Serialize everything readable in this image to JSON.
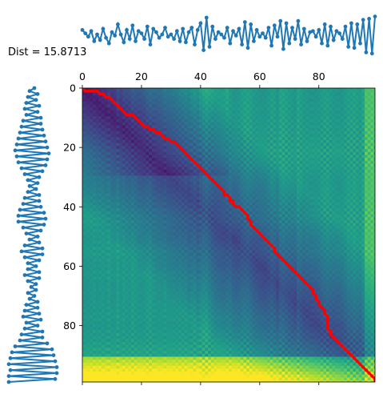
{
  "dist_label": "Dist = 15.8713",
  "chart_data": [
    {
      "type": "heatmap",
      "title": "",
      "xlabel": "",
      "ylabel": "",
      "xlim": [
        0,
        99
      ],
      "ylim": [
        99,
        0
      ],
      "x_ticks": [
        0,
        20,
        40,
        60,
        80
      ],
      "y_ticks": [
        0,
        20,
        40,
        60,
        80
      ],
      "x_tick_labels": [
        "0",
        "20",
        "40",
        "60",
        "80"
      ],
      "y_tick_labels": [
        "0",
        "20",
        "40",
        "60",
        "80"
      ],
      "colormap": "viridis",
      "path_color": "#ff0000",
      "path": [
        [
          0,
          0
        ],
        [
          1,
          1
        ],
        [
          2,
          1
        ],
        [
          3,
          1
        ],
        [
          4,
          1
        ],
        [
          5,
          1
        ],
        [
          6,
          2
        ],
        [
          7,
          2
        ],
        [
          8,
          3
        ],
        [
          9,
          3
        ],
        [
          10,
          4
        ],
        [
          11,
          5
        ],
        [
          12,
          6
        ],
        [
          13,
          7
        ],
        [
          14,
          8
        ],
        [
          15,
          9
        ],
        [
          16,
          9
        ],
        [
          17,
          9
        ],
        [
          18,
          10
        ],
        [
          19,
          11
        ],
        [
          20,
          12
        ],
        [
          21,
          13
        ],
        [
          22,
          13
        ],
        [
          23,
          14
        ],
        [
          24,
          14
        ],
        [
          25,
          15
        ],
        [
          26,
          15
        ],
        [
          27,
          16
        ],
        [
          28,
          17
        ],
        [
          29,
          17
        ],
        [
          30,
          18
        ],
        [
          31,
          18
        ],
        [
          32,
          19
        ],
        [
          33,
          20
        ],
        [
          34,
          21
        ],
        [
          35,
          22
        ],
        [
          36,
          23
        ],
        [
          37,
          24
        ],
        [
          38,
          25
        ],
        [
          39,
          26
        ],
        [
          40,
          27
        ],
        [
          41,
          28
        ],
        [
          42,
          29
        ],
        [
          43,
          30
        ],
        [
          44,
          31
        ],
        [
          45,
          32
        ],
        [
          46,
          33
        ],
        [
          47,
          34
        ],
        [
          48,
          35
        ],
        [
          48,
          36
        ],
        [
          49,
          36
        ],
        [
          50,
          37
        ],
        [
          50,
          38
        ],
        [
          51,
          38
        ],
        [
          51,
          39
        ],
        [
          52,
          40
        ],
        [
          53,
          40
        ],
        [
          54,
          41
        ],
        [
          55,
          42
        ],
        [
          56,
          43
        ],
        [
          56,
          44
        ],
        [
          57,
          45
        ],
        [
          57,
          46
        ],
        [
          58,
          47
        ],
        [
          59,
          48
        ],
        [
          60,
          49
        ],
        [
          61,
          50
        ],
        [
          62,
          51
        ],
        [
          63,
          52
        ],
        [
          64,
          53
        ],
        [
          65,
          54
        ],
        [
          65,
          55
        ],
        [
          66,
          56
        ],
        [
          67,
          57
        ],
        [
          68,
          58
        ],
        [
          69,
          59
        ],
        [
          70,
          60
        ],
        [
          71,
          61
        ],
        [
          72,
          62
        ],
        [
          73,
          63
        ],
        [
          74,
          64
        ],
        [
          75,
          65
        ],
        [
          76,
          66
        ],
        [
          77,
          67
        ],
        [
          78,
          68
        ],
        [
          78,
          69
        ],
        [
          79,
          70
        ],
        [
          79,
          71
        ],
        [
          80,
          72
        ],
        [
          80,
          73
        ],
        [
          81,
          74
        ],
        [
          82,
          75
        ],
        [
          82,
          76
        ],
        [
          83,
          77
        ],
        [
          83,
          78
        ],
        [
          83,
          79
        ],
        [
          83,
          80
        ],
        [
          83,
          81
        ],
        [
          84,
          82
        ],
        [
          84,
          83
        ],
        [
          85,
          84
        ],
        [
          86,
          85
        ],
        [
          87,
          86
        ],
        [
          88,
          87
        ],
        [
          89,
          88
        ],
        [
          90,
          89
        ],
        [
          91,
          90
        ],
        [
          92,
          91
        ],
        [
          93,
          92
        ],
        [
          94,
          93
        ],
        [
          95,
          94
        ],
        [
          96,
          95
        ],
        [
          97,
          96
        ],
        [
          98,
          97
        ],
        [
          99,
          98
        ],
        [
          99,
          99
        ]
      ]
    },
    {
      "type": "line",
      "title": "",
      "color": "#1f77b4",
      "marker": "circle",
      "x_range": [
        0,
        99
      ],
      "values": [
        0.4,
        0.1,
        -0.2,
        0.3,
        -0.6,
        0.0,
        -0.5,
        0.5,
        -0.3,
        -0.8,
        0.2,
        -0.1,
        0.9,
        0.0,
        -0.7,
        0.4,
        -0.4,
        0.8,
        -0.6,
        0.3,
        0.1,
        -0.4,
        0.7,
        -0.9,
        0.5,
        0.2,
        -0.3,
        0.0,
        0.6,
        -0.2,
        0.0,
        -0.4,
        0.3,
        -0.6,
        0.5,
        -0.7,
        0.2,
        0.6,
        -0.9,
        0.4,
        1.0,
        -1.4,
        1.5,
        -1.1,
        0.7,
        -0.4,
        0.2,
        0.0,
        -0.3,
        0.6,
        -0.8,
        0.3,
        -0.1,
        0.5,
        -0.9,
        1.1,
        -1.2,
        0.9,
        -0.6,
        0.4,
        -0.2,
        0.1,
        -0.3,
        0.6,
        -1.0,
        0.8,
        -0.2,
        1.2,
        -1.3,
        1.0,
        -0.8,
        0.6,
        -0.4,
        1.2,
        -0.9,
        0.5,
        -0.6,
        0.2,
        0.3,
        -0.2,
        0.4,
        -0.8,
        0.9,
        -1.0,
        0.7,
        -0.5,
        0.3,
        0.1,
        -0.4,
        0.7,
        -1.1,
        1.0,
        -1.2,
        0.9,
        -0.8,
        1.3,
        -1.6,
        1.4,
        -1.7,
        1.6
      ]
    },
    {
      "type": "line",
      "title": "",
      "orientation": "vertical",
      "color": "#1f77b4",
      "marker": "circle",
      "y_range": [
        0,
        99
      ],
      "values": [
        0.1,
        -0.2,
        0.3,
        -0.3,
        0.2,
        -0.4,
        0.4,
        -0.5,
        0.3,
        -0.4,
        0.5,
        -0.6,
        0.5,
        -0.7,
        0.6,
        -0.8,
        0.7,
        -0.9,
        0.8,
        -1.0,
        0.9,
        -1.1,
        1.0,
        -1.0,
        0.9,
        -0.9,
        0.8,
        -0.7,
        0.6,
        -0.5,
        0.4,
        -0.3,
        0.3,
        -0.2,
        0.2,
        -0.3,
        0.4,
        -0.5,
        0.4,
        -0.6,
        0.5,
        -0.8,
        0.7,
        -0.9,
        0.8,
        -0.9,
        0.7,
        -0.6,
        0.5,
        -0.4,
        0.3,
        -0.2,
        0.4,
        -0.5,
        0.6,
        -0.7,
        0.6,
        -0.5,
        0.4,
        -0.3,
        0.2,
        -0.3,
        0.4,
        -0.5,
        0.4,
        -0.3,
        0.2,
        -0.1,
        0.2,
        -0.3,
        0.1,
        -0.2,
        0.3,
        -0.4,
        0.3,
        -0.5,
        0.4,
        -0.6,
        0.5,
        -0.4,
        0.3,
        -0.5,
        0.6,
        -0.7,
        0.6,
        -0.8,
        0.9,
        -1.1,
        1.2,
        -1.3,
        1.3,
        -1.4,
        1.4,
        -1.5,
        1.5,
        -1.4,
        1.5,
        -1.5,
        1.4,
        -1.5
      ]
    }
  ]
}
